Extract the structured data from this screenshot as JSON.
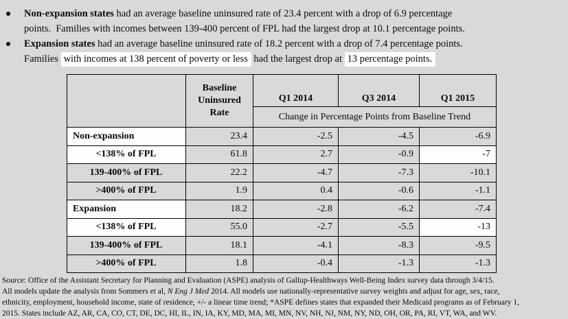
{
  "colors": {
    "page-bg": "#d9d9d9",
    "cell-white": "#fdfdfd",
    "highlight": "#fefefe",
    "border": "#000000",
    "text": "#0a0a0a"
  },
  "bullets": [
    {
      "lines": [
        {
          "segments": [
            {
              "text": "Non-expansion states",
              "bold": true
            },
            {
              "text": " had an average baseline uninsured rate of 23.4 percent with a drop of 6.9 percentage"
            }
          ]
        },
        {
          "segments": [
            {
              "text": "points.  Families with incomes between 139-400 percent of FPL had the largest drop at 10.1 percentage points."
            }
          ]
        }
      ]
    },
    {
      "lines": [
        {
          "segments": [
            {
              "text": "Expansion states",
              "bold": true
            },
            {
              "text": " had an average baseline uninsured rate of 18.2 percent with a drop of 7.4 percentage points."
            }
          ]
        },
        {
          "segments": [
            {
              "text": "Families "
            },
            {
              "text": "with incomes at 138 percent of poverty or less",
              "highlight": true
            },
            {
              "text": " had the largest drop at "
            },
            {
              "text": "13 percentage points.",
              "highlight": true
            }
          ]
        }
      ]
    }
  ],
  "table": {
    "header": {
      "corner": "",
      "baseline_col": "Baseline Uninsured Rate",
      "quarter_cols": [
        "Q1 2014",
        "Q3 2014",
        "Q1 2015"
      ],
      "span_label": "Change in Percentage Points from Baseline Trend"
    },
    "rows": [
      {
        "label": "Non-expansion",
        "indent": false,
        "label_white": true,
        "values": [
          "23.4",
          "-2.5",
          "-4.5",
          "-6.9"
        ],
        "white_cells": []
      },
      {
        "label": "<138% of FPL",
        "indent": true,
        "label_white": true,
        "values": [
          "61.8",
          "2.7",
          "-0.9",
          "-7"
        ],
        "white_cells": [
          3
        ]
      },
      {
        "label": "139-400% of FPL",
        "indent": true,
        "label_white": false,
        "values": [
          "22.2",
          "-4.7",
          "-7.3",
          "-10.1"
        ],
        "white_cells": []
      },
      {
        "label": ">400% of FPL",
        "indent": true,
        "label_white": false,
        "values": [
          "1.9",
          "0.4",
          "-0.6",
          "-1.1"
        ],
        "white_cells": []
      },
      {
        "label": "Expansion",
        "indent": false,
        "label_white": true,
        "values": [
          "18.2",
          "-2.8",
          "-6.2",
          "-7.4"
        ],
        "white_cells": []
      },
      {
        "label": "<138% of FPL",
        "indent": true,
        "label_white": true,
        "values": [
          "55.0",
          "-2.7",
          "-5.5",
          "-13"
        ],
        "white_cells": [
          3
        ]
      },
      {
        "label": "139-400% of FPL",
        "indent": true,
        "label_white": false,
        "values": [
          "18.1",
          "-4.1",
          "-8.3",
          "-9.5"
        ],
        "white_cells": []
      },
      {
        "label": ">400% of FPL",
        "indent": true,
        "label_white": false,
        "values": [
          "1.8",
          "-0.4",
          "-1.3",
          "-1.3"
        ],
        "white_cells": []
      }
    ]
  },
  "footer": {
    "lines": [
      {
        "segments": [
          {
            "text": "Source: Office of the Assistant Secretary for Planning and Evaluation (ASPE) analysis of Gallup-Healthways Well-Being Index survey data through 3/4/15."
          }
        ]
      },
      {
        "segments": [
          {
            "text": "All models update the analysis from Sommers et al, "
          },
          {
            "text": "N Eng J Med",
            "italic": true
          },
          {
            "text": " 2014. All models use nationally-representative survey weights and adjust for age, sex, race,"
          }
        ]
      },
      {
        "segments": [
          {
            "text": "ethnicity, employment, household income, state of residence, +/- a linear time trend; *ASPE defines states that expanded their Medicaid programs as of February 1,"
          }
        ]
      },
      {
        "segments": [
          {
            "text": "2015. States include AZ, AR, CA, CO, CT, DE, DC, HI, IL, IN, IA, KY, MD, MA, MI, MN, NV, NH, NJ, NM, NY, ND, OH, OR, PA, RI, VT, WA, and WV."
          }
        ]
      }
    ]
  },
  "chart_data": {
    "type": "table",
    "title": "Change in Percentage Points from Baseline Trend",
    "columns": [
      "",
      "Baseline Uninsured Rate",
      "Q1 2014",
      "Q3 2014",
      "Q1 2015"
    ],
    "rows": [
      [
        "Non-expansion",
        23.4,
        -2.5,
        -4.5,
        -6.9
      ],
      [
        "<138% of FPL",
        61.8,
        2.7,
        -0.9,
        -7
      ],
      [
        "139-400% of FPL",
        22.2,
        -4.7,
        -7.3,
        -10.1
      ],
      [
        ">400% of FPL",
        1.9,
        0.4,
        -0.6,
        -1.1
      ],
      [
        "Expansion",
        18.2,
        -2.8,
        -6.2,
        -7.4
      ],
      [
        "<138% of FPL",
        55.0,
        -2.7,
        -5.5,
        -13
      ],
      [
        "139-400% of FPL",
        18.1,
        -4.1,
        -8.3,
        -9.5
      ],
      [
        ">400% of FPL",
        1.8,
        -0.4,
        -1.3,
        -1.3
      ]
    ]
  }
}
